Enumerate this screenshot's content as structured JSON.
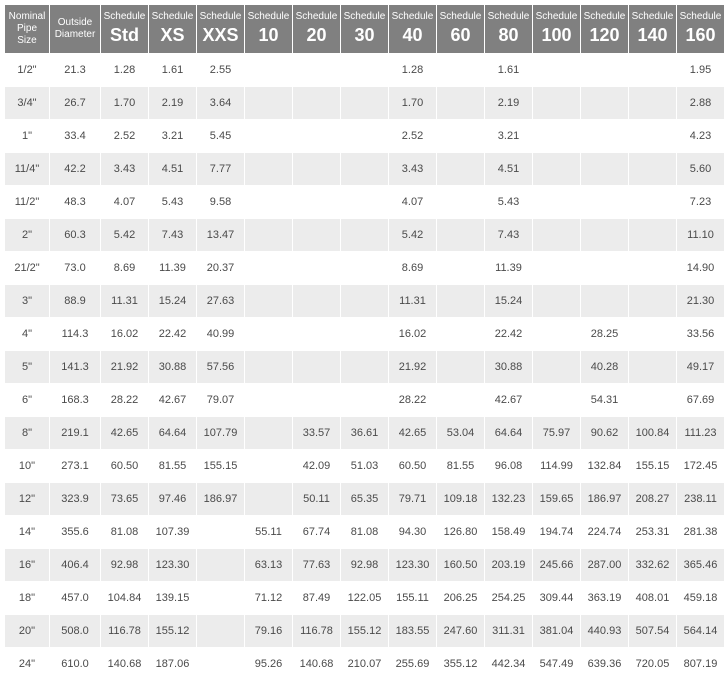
{
  "table": {
    "type": "table",
    "header_bg": "#808080",
    "header_fg": "#ffffff",
    "row_bg_odd": "#ffffff",
    "row_bg_even": "#ececec",
    "cell_font_size": 11,
    "header_small_font_size": 10,
    "header_big_font_size": 18,
    "columns": [
      {
        "key": "nps",
        "line1": "Nominal",
        "line2": "Pipe Size",
        "big": ""
      },
      {
        "key": "od",
        "line1": "Outside",
        "line2": "Diameter",
        "big": ""
      },
      {
        "key": "std",
        "line1": "Schedule",
        "line2": "",
        "big": "Std"
      },
      {
        "key": "xs",
        "line1": "Schedule",
        "line2": "",
        "big": "XS"
      },
      {
        "key": "xxs",
        "line1": "Schedule",
        "line2": "",
        "big": "XXS"
      },
      {
        "key": "s10",
        "line1": "Schedule",
        "line2": "",
        "big": "10"
      },
      {
        "key": "s20",
        "line1": "Schedule",
        "line2": "",
        "big": "20"
      },
      {
        "key": "s30",
        "line1": "Schedule",
        "line2": "",
        "big": "30"
      },
      {
        "key": "s40",
        "line1": "Schedule",
        "line2": "",
        "big": "40"
      },
      {
        "key": "s60",
        "line1": "Schedule",
        "line2": "",
        "big": "60"
      },
      {
        "key": "s80",
        "line1": "Schedule",
        "line2": "",
        "big": "80"
      },
      {
        "key": "s100",
        "line1": "Schedule",
        "line2": "",
        "big": "100"
      },
      {
        "key": "s120",
        "line1": "Schedule",
        "line2": "",
        "big": "120"
      },
      {
        "key": "s140",
        "line1": "Schedule",
        "line2": "",
        "big": "140"
      },
      {
        "key": "s160",
        "line1": "Schedule",
        "line2": "",
        "big": "160"
      }
    ],
    "rows": [
      {
        "nps": "1/2\"",
        "od": "21.3",
        "std": "1.28",
        "xs": "1.61",
        "xxs": "2.55",
        "s10": "",
        "s20": "",
        "s30": "",
        "s40": "1.28",
        "s60": "",
        "s80": "1.61",
        "s100": "",
        "s120": "",
        "s140": "",
        "s160": "1.95"
      },
      {
        "nps": "3/4\"",
        "od": "26.7",
        "std": "1.70",
        "xs": "2.19",
        "xxs": "3.64",
        "s10": "",
        "s20": "",
        "s30": "",
        "s40": "1.70",
        "s60": "",
        "s80": "2.19",
        "s100": "",
        "s120": "",
        "s140": "",
        "s160": "2.88"
      },
      {
        "nps": "1\"",
        "od": "33.4",
        "std": "2.52",
        "xs": "3.21",
        "xxs": "5.45",
        "s10": "",
        "s20": "",
        "s30": "",
        "s40": "2.52",
        "s60": "",
        "s80": "3.21",
        "s100": "",
        "s120": "",
        "s140": "",
        "s160": "4.23"
      },
      {
        "nps": "11/4\"",
        "od": "42.2",
        "std": "3.43",
        "xs": "4.51",
        "xxs": "7.77",
        "s10": "",
        "s20": "",
        "s30": "",
        "s40": "3.43",
        "s60": "",
        "s80": "4.51",
        "s100": "",
        "s120": "",
        "s140": "",
        "s160": "5.60"
      },
      {
        "nps": "11/2\"",
        "od": "48.3",
        "std": "4.07",
        "xs": "5.43",
        "xxs": "9.58",
        "s10": "",
        "s20": "",
        "s30": "",
        "s40": "4.07",
        "s60": "",
        "s80": "5.43",
        "s100": "",
        "s120": "",
        "s140": "",
        "s160": "7.23"
      },
      {
        "nps": "2\"",
        "od": "60.3",
        "std": "5.42",
        "xs": "7.43",
        "xxs": "13.47",
        "s10": "",
        "s20": "",
        "s30": "",
        "s40": "5.42",
        "s60": "",
        "s80": "7.43",
        "s100": "",
        "s120": "",
        "s140": "",
        "s160": "11.10"
      },
      {
        "nps": "21/2\"",
        "od": "73.0",
        "std": "8.69",
        "xs": "11.39",
        "xxs": "20.37",
        "s10": "",
        "s20": "",
        "s30": "",
        "s40": "8.69",
        "s60": "",
        "s80": "11.39",
        "s100": "",
        "s120": "",
        "s140": "",
        "s160": "14.90"
      },
      {
        "nps": "3\"",
        "od": "88.9",
        "std": "11.31",
        "xs": "15.24",
        "xxs": "27.63",
        "s10": "",
        "s20": "",
        "s30": "",
        "s40": "11.31",
        "s60": "",
        "s80": "15.24",
        "s100": "",
        "s120": "",
        "s140": "",
        "s160": "21.30"
      },
      {
        "nps": "4\"",
        "od": "114.3",
        "std": "16.02",
        "xs": "22.42",
        "xxs": "40.99",
        "s10": "",
        "s20": "",
        "s30": "",
        "s40": "16.02",
        "s60": "",
        "s80": "22.42",
        "s100": "",
        "s120": "28.25",
        "s140": "",
        "s160": "33.56"
      },
      {
        "nps": "5\"",
        "od": "141.3",
        "std": "21.92",
        "xs": "30.88",
        "xxs": "57.56",
        "s10": "",
        "s20": "",
        "s30": "",
        "s40": "21.92",
        "s60": "",
        "s80": "30.88",
        "s100": "",
        "s120": "40.28",
        "s140": "",
        "s160": "49.17"
      },
      {
        "nps": "6\"",
        "od": "168.3",
        "std": "28.22",
        "xs": "42.67",
        "xxs": "79.07",
        "s10": "",
        "s20": "",
        "s30": "",
        "s40": "28.22",
        "s60": "",
        "s80": "42.67",
        "s100": "",
        "s120": "54.31",
        "s140": "",
        "s160": "67.69"
      },
      {
        "nps": "8\"",
        "od": "219.1",
        "std": "42.65",
        "xs": "64.64",
        "xxs": "107.79",
        "s10": "",
        "s20": "33.57",
        "s30": "36.61",
        "s40": "42.65",
        "s60": "53.04",
        "s80": "64.64",
        "s100": "75.97",
        "s120": "90.62",
        "s140": "100.84",
        "s160": "111.23"
      },
      {
        "nps": "10\"",
        "od": "273.1",
        "std": "60.50",
        "xs": "81.55",
        "xxs": "155.15",
        "s10": "",
        "s20": "42.09",
        "s30": "51.03",
        "s40": "60.50",
        "s60": "81.55",
        "s80": "96.08",
        "s100": "114.99",
        "s120": "132.84",
        "s140": "155.15",
        "s160": "172.45"
      },
      {
        "nps": "12\"",
        "od": "323.9",
        "std": "73.65",
        "xs": "97.46",
        "xxs": "186.97",
        "s10": "",
        "s20": "50.11",
        "s30": "65.35",
        "s40": "79.71",
        "s60": "109.18",
        "s80": "132.23",
        "s100": "159.65",
        "s120": "186.97",
        "s140": "208.27",
        "s160": "238.11"
      },
      {
        "nps": "14\"",
        "od": "355.6",
        "std": "81.08",
        "xs": "107.39",
        "xxs": "",
        "s10": "55.11",
        "s20": "67.74",
        "s30": "81.08",
        "s40": "94.30",
        "s60": "126.80",
        "s80": "158.49",
        "s100": "194.74",
        "s120": "224.74",
        "s140": "253.31",
        "s160": "281.38"
      },
      {
        "nps": "16\"",
        "od": "406.4",
        "std": "92.98",
        "xs": "123.30",
        "xxs": "",
        "s10": "63.13",
        "s20": "77.63",
        "s30": "92.98",
        "s40": "123.30",
        "s60": "160.50",
        "s80": "203.19",
        "s100": "245.66",
        "s120": "287.00",
        "s140": "332.62",
        "s160": "365.46"
      },
      {
        "nps": "18\"",
        "od": "457.0",
        "std": "104.84",
        "xs": "139.15",
        "xxs": "",
        "s10": "71.12",
        "s20": "87.49",
        "s30": "122.05",
        "s40": "155.11",
        "s60": "206.25",
        "s80": "254.25",
        "s100": "309.44",
        "s120": "363.19",
        "s140": "408.01",
        "s160": "459.18"
      },
      {
        "nps": "20\"",
        "od": "508.0",
        "std": "116.78",
        "xs": "155.12",
        "xxs": "",
        "s10": "79.16",
        "s20": "116.78",
        "s30": "155.12",
        "s40": "183.55",
        "s60": "247.60",
        "s80": "311.31",
        "s100": "381.04",
        "s120": "440.93",
        "s140": "507.54",
        "s160": "564.14"
      },
      {
        "nps": "24\"",
        "od": "610.0",
        "std": "140.68",
        "xs": "187.06",
        "xxs": "",
        "s10": "95.26",
        "s20": "140.68",
        "s30": "210.07",
        "s40": "255.69",
        "s60": "355.12",
        "s80": "442.34",
        "s100": "547.49",
        "s120": "639.36",
        "s140": "720.05",
        "s160": "807.19"
      }
    ]
  }
}
